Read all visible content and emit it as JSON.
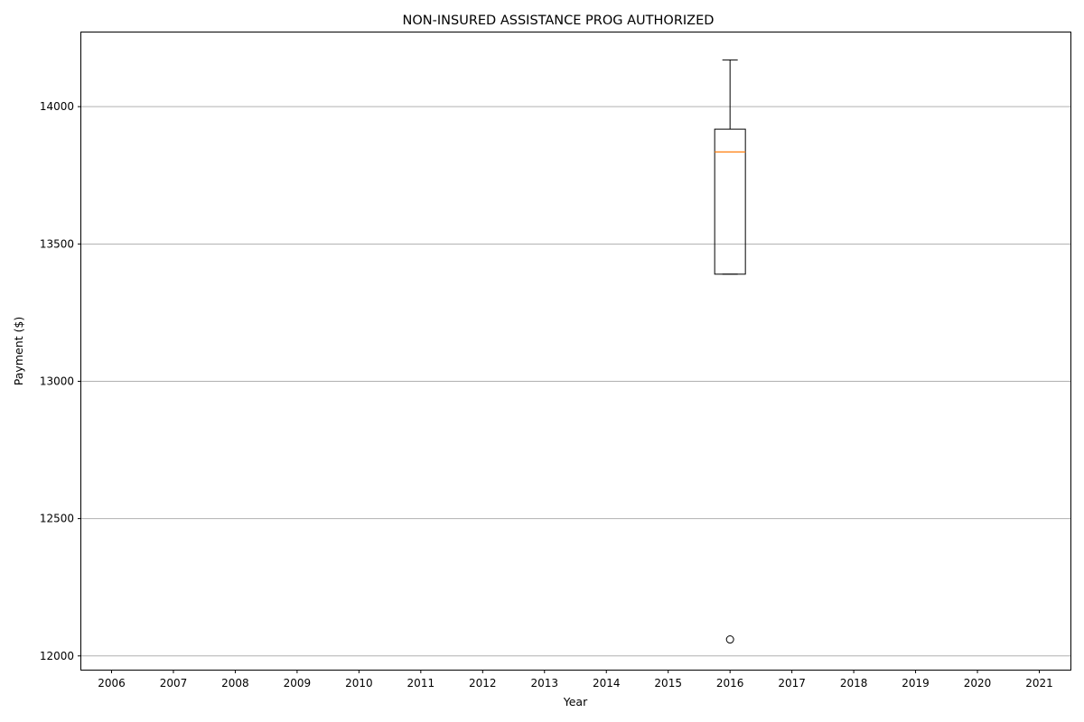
{
  "chart_data": {
    "type": "box",
    "title": "NON-INSURED ASSISTANCE PROG AUTHORIZED",
    "xlabel": "Year",
    "ylabel": "Payment ($)",
    "categories": [
      "2006",
      "2007",
      "2008",
      "2009",
      "2010",
      "2011",
      "2012",
      "2013",
      "2014",
      "2015",
      "2016",
      "2017",
      "2018",
      "2019",
      "2020",
      "2021"
    ],
    "y_ticks": [
      12000,
      12500,
      13000,
      13500,
      14000
    ],
    "ylim": [
      11950,
      14270
    ],
    "grid": "y",
    "boxes": [
      {
        "category": "2016",
        "whisker_low": 13390,
        "q1": 13390,
        "median": 13835,
        "q3": 13918,
        "whisker_high": 14170,
        "outliers": [
          12060
        ]
      }
    ],
    "colors": {
      "box": "#000000",
      "median": "#ff7f0e",
      "grid": "#b0b0b0"
    }
  }
}
